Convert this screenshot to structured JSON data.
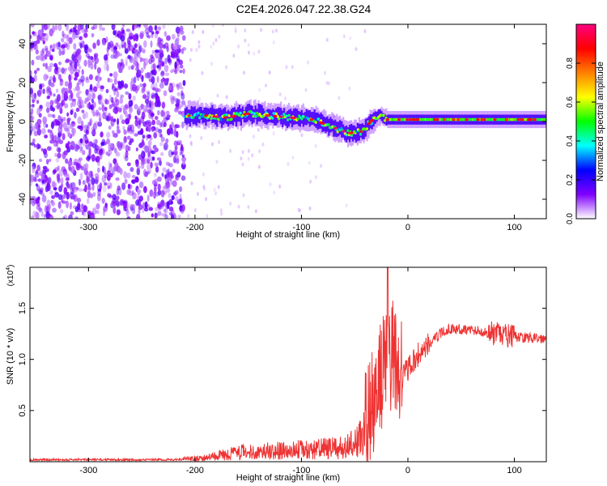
{
  "title": "C2E4.2026.047.22.38.G24",
  "chart_data": [
    {
      "type": "heatmap",
      "name": "spectrogram",
      "xlabel": "Height of straight line (km)",
      "ylabel": "Frequency (Hz)",
      "xlim": [
        -355,
        130
      ],
      "ylim": [
        -50,
        50
      ],
      "xticks": [
        -300,
        -200,
        -100,
        0,
        100
      ],
      "yticks": [
        -40,
        -20,
        0,
        20,
        40
      ],
      "noise_region_x": [
        -355,
        -210
      ],
      "signal_start_x": -210,
      "tone_frequency_track": {
        "x": [
          -210,
          -190,
          -170,
          -150,
          -130,
          -110,
          -90,
          -70,
          -55,
          -42,
          -35,
          -28,
          -20,
          0,
          20,
          50,
          80,
          110,
          130
        ],
        "y": [
          3,
          3,
          2,
          4,
          3,
          2,
          1,
          -3,
          -6,
          -5,
          0,
          3,
          1,
          1,
          1,
          1,
          1,
          1,
          1
        ]
      },
      "colorbar": {
        "label": "Normalized spectral amplitude",
        "range": [
          0,
          1
        ],
        "ticks": [
          "0.0",
          "0.2",
          "0.4",
          "0.6",
          "0.8"
        ],
        "colors": [
          "#ffffff",
          "#8000ff",
          "#0000ff",
          "#00ffff",
          "#00ff00",
          "#ffff00",
          "#ff8000",
          "#ff0000",
          "#ff0080"
        ]
      }
    },
    {
      "type": "line",
      "name": "snr",
      "xlabel": "Height of straight line (km)",
      "ylabel": "SNR (10 * v/v)",
      "scale_label": "(x10",
      "scale_exp": "4",
      "xlim": [
        -355,
        130
      ],
      "ylim": [
        0,
        1.9
      ],
      "xticks": [
        -300,
        -200,
        -100,
        0,
        100
      ],
      "yticks": [
        "0.5",
        "1.0",
        "1.5"
      ],
      "color": "#ee3333",
      "envelope": {
        "x": [
          -355,
          -220,
          -200,
          -180,
          -160,
          -140,
          -120,
          -100,
          -80,
          -60,
          -50,
          -42,
          -38,
          -32,
          -26,
          -20,
          -15,
          -10,
          -5,
          0,
          10,
          20,
          30,
          40,
          60,
          80,
          100,
          130
        ],
        "y": [
          0.02,
          0.02,
          0.03,
          0.06,
          0.1,
          0.11,
          0.12,
          0.13,
          0.14,
          0.15,
          0.2,
          0.3,
          0.4,
          0.6,
          0.8,
          1.0,
          1.05,
          0.95,
          0.85,
          0.9,
          1.05,
          1.15,
          1.25,
          1.3,
          1.29,
          1.25,
          1.22,
          1.2
        ]
      },
      "peak": {
        "x": -19,
        "y": 1.9
      }
    }
  ]
}
